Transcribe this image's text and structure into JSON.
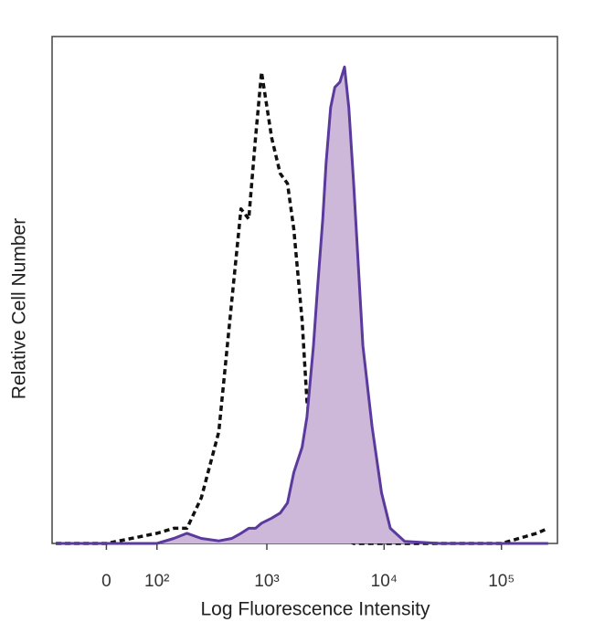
{
  "chart_data": {
    "type": "histogram-overlay",
    "xlabel": "Log Fluorescence Intensity",
    "ylabel": "Relative Cell Number",
    "xscale": "biexponential",
    "xlim": [
      -110,
      300000
    ],
    "ylim": [
      0,
      100
    ],
    "xticks": [
      0,
      {
        "value": 100,
        "label": "10²"
      },
      {
        "value": 1000,
        "label": "10³"
      },
      {
        "value": 10000,
        "label": "10⁴"
      },
      {
        "value": 100000,
        "label": "10⁵"
      }
    ],
    "x": [
      -100,
      0,
      100,
      150,
      200,
      270,
      385,
      500,
      600,
      700,
      800,
      900,
      1100,
      1300,
      1500,
      1700,
      2000,
      2200,
      2500,
      2700,
      3000,
      3200,
      3500,
      3800,
      4200,
      4600,
      5000,
      5500,
      6600,
      7900,
      9500,
      11300,
      15000,
      30000,
      100000,
      200000,
      250000
    ],
    "series": [
      {
        "color": "#111111",
        "line_style": "dashed",
        "values": [
          0,
          0,
          2,
          3,
          3,
          9,
          22,
          48,
          66,
          64,
          80,
          93,
          80,
          73,
          71,
          62,
          44,
          28,
          20,
          15,
          8,
          6,
          4,
          3,
          2,
          1,
          0.5,
          0,
          0,
          0,
          0,
          0,
          0,
          0,
          0,
          2,
          3
        ]
      },
      {
        "color": "#5b3a9e",
        "fill": "#cdb8da",
        "line_style": "solid",
        "values": [
          0,
          0,
          0,
          1,
          2,
          1,
          0.5,
          1,
          2,
          3,
          3,
          4,
          5,
          6,
          8,
          14,
          19,
          25,
          39,
          50,
          64,
          75,
          86,
          90,
          91,
          94,
          86,
          71,
          39,
          23,
          10,
          3,
          0.4,
          0,
          0,
          0,
          0
        ]
      }
    ]
  }
}
